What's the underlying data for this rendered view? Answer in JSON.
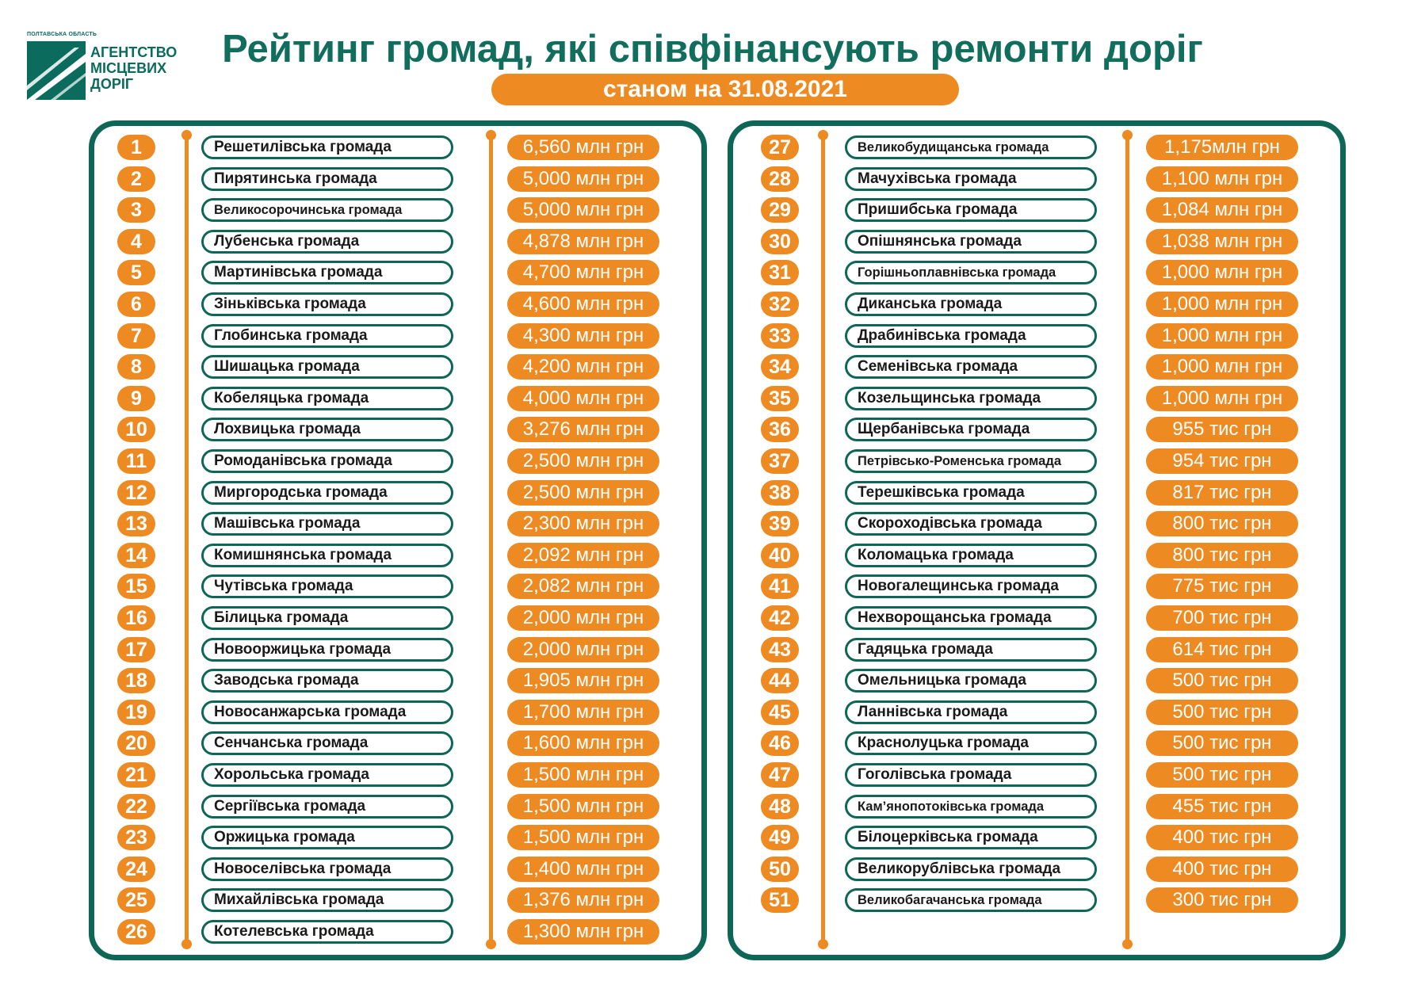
{
  "logo": {
    "oblast": "ПОЛТАВСЬКА ОБЛАСТЬ",
    "line1": "АГЕНТСТВО",
    "line2": "МІСЦЕВИХ",
    "line3": "ДОРІГ",
    "icon": "road-logo-icon"
  },
  "title": "Рейтинг громад, які співфінансують ремонти доріг",
  "date_label": "станом на 31.08.2021",
  "colors": {
    "green": "#0d6656",
    "orange": "#ee8a22"
  },
  "rows": [
    {
      "rank": "1",
      "name": "Решетилівська громада",
      "amount": "6,560 млн грн"
    },
    {
      "rank": "2",
      "name": "Пирятинська громада",
      "amount": "5,000 млн грн"
    },
    {
      "rank": "3",
      "name": "Великосорочинська громада",
      "amount": "5,000 млн грн"
    },
    {
      "rank": "4",
      "name": "Лубенська громада",
      "amount": "4,878 млн грн"
    },
    {
      "rank": "5",
      "name": "Мартинівська громада",
      "amount": "4,700 млн грн"
    },
    {
      "rank": "6",
      "name": "Зіньківська громада",
      "amount": "4,600 млн грн"
    },
    {
      "rank": "7",
      "name": "Глобинська громада",
      "amount": "4,300 млн грн"
    },
    {
      "rank": "8",
      "name": "Шишацька громада",
      "amount": "4,200 млн грн"
    },
    {
      "rank": "9",
      "name": "Кобеляцька громада",
      "amount": "4,000 млн грн"
    },
    {
      "rank": "10",
      "name": "Лохвицька громада",
      "amount": "3,276 млн грн"
    },
    {
      "rank": "11",
      "name": "Ромоданівська громада",
      "amount": "2,500 млн грн"
    },
    {
      "rank": "12",
      "name": "Миргородська громада",
      "amount": "2,500 млн грн"
    },
    {
      "rank": "13",
      "name": "Машівська громада",
      "amount": "2,300 млн грн"
    },
    {
      "rank": "14",
      "name": "Комишнянська громада",
      "amount": "2,092 млн грн"
    },
    {
      "rank": "15",
      "name": "Чутівська громада",
      "amount": "2,082 млн грн"
    },
    {
      "rank": "16",
      "name": "Білицька громада",
      "amount": "2,000 млн грн"
    },
    {
      "rank": "17",
      "name": "Новооржицька громада",
      "amount": "2,000 млн грн"
    },
    {
      "rank": "18",
      "name": "Заводська громада",
      "amount": "1,905 млн грн"
    },
    {
      "rank": "19",
      "name": "Новосанжарська громада",
      "amount": "1,700 млн грн"
    },
    {
      "rank": "20",
      "name": "Сенчанська громада",
      "amount": "1,600 млн грн"
    },
    {
      "rank": "21",
      "name": "Хорольська громада",
      "amount": "1,500 млн грн"
    },
    {
      "rank": "22",
      "name": "Сергіївська громада",
      "amount": "1,500 млн грн"
    },
    {
      "rank": "23",
      "name": "Оржицька громада",
      "amount": "1,500 млн грн"
    },
    {
      "rank": "24",
      "name": "Новоселівська громада",
      "amount": "1,400 млн грн"
    },
    {
      "rank": "25",
      "name": "Михайлівська громада",
      "amount": "1,376 млн грн"
    },
    {
      "rank": "26",
      "name": "Котелевська громада",
      "amount": "1,300 млн грн"
    },
    {
      "rank": "27",
      "name": "Великобудищанська громада",
      "amount": "1,175млн грн"
    },
    {
      "rank": "28",
      "name": "Мачухівська громада",
      "amount": "1,100 млн грн"
    },
    {
      "rank": "29",
      "name": "Пришибська громада",
      "amount": "1,084 млн грн"
    },
    {
      "rank": "30",
      "name": "Опішнянська громада",
      "amount": "1,038 млн грн"
    },
    {
      "rank": "31",
      "name": "Горішньоплавнівська громада",
      "amount": "1,000 млн грн"
    },
    {
      "rank": "32",
      "name": "Диканська громада",
      "amount": "1,000 млн грн"
    },
    {
      "rank": "33",
      "name": "Драбинівська громада",
      "amount": "1,000 млн грн"
    },
    {
      "rank": "34",
      "name": "Семенівська громада",
      "amount": "1,000 млн грн"
    },
    {
      "rank": "35",
      "name": "Козельщинська громада",
      "amount": "1,000 млн грн"
    },
    {
      "rank": "36",
      "name": "Щербанівська громада",
      "amount": "955 тис грн"
    },
    {
      "rank": "37",
      "name": "Петрівсько-Роменська громада",
      "amount": "954 тис грн"
    },
    {
      "rank": "38",
      "name": "Терешківська громада",
      "amount": "817 тис грн"
    },
    {
      "rank": "39",
      "name": "Скороходівська громада",
      "amount": "800 тис грн"
    },
    {
      "rank": "40",
      "name": "Коломацька громада",
      "amount": "800 тис грн"
    },
    {
      "rank": "41",
      "name": "Новогалещинська громада",
      "amount": "775 тис грн"
    },
    {
      "rank": "42",
      "name": "Нехворощанська громада",
      "amount": "700 тис грн"
    },
    {
      "rank": "43",
      "name": "Гадяцька громада",
      "amount": "614 тис грн"
    },
    {
      "rank": "44",
      "name": "Омельницька громада",
      "amount": "500 тис грн"
    },
    {
      "rank": "45",
      "name": "Ланнівська громада",
      "amount": "500 тис грн"
    },
    {
      "rank": "46",
      "name": "Краснолуцька громада",
      "amount": "500 тис грн"
    },
    {
      "rank": "47",
      "name": "Гоголівська громада",
      "amount": "500 тис грн"
    },
    {
      "rank": "48",
      "name": "Кам’янопотоківська громада",
      "amount": "455 тис грн"
    },
    {
      "rank": "49",
      "name": "Білоцерківська громада",
      "amount": "400 тис грн"
    },
    {
      "rank": "50",
      "name": "Великорублівська громада",
      "amount": "400 тис грн"
    },
    {
      "rank": "51",
      "name": "Великобагачанська громада",
      "amount": "300 тис грн"
    }
  ]
}
